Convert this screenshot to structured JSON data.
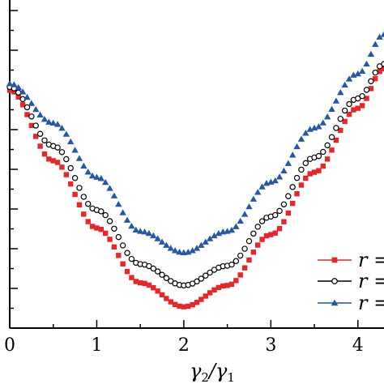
{
  "chart_data": {
    "type": "scatter",
    "xlabel": {
      "base1": "γ",
      "sub1": "2",
      "slash": "/",
      "base2": "γ",
      "sub2": "1"
    },
    "x_tick_labels": [
      "0",
      "1",
      "2",
      "3",
      "4"
    ],
    "xlim": [
      0,
      4.3
    ],
    "ylim": [
      0,
      1
    ],
    "grid": false,
    "legend_position": "right",
    "series": [
      {
        "legend_label": "r =",
        "color": "#e8262a",
        "marker": "square",
        "x": [
          0.0,
          0.5,
          1.0,
          1.5,
          2.0,
          2.5,
          3.0,
          3.5,
          4.0,
          4.3
        ],
        "y": [
          0.725,
          0.51,
          0.305,
          0.138,
          0.065,
          0.13,
          0.285,
          0.475,
          0.67,
          0.79
        ]
      },
      {
        "legend_label": "r =",
        "color": "#000000",
        "marker": "circle-open",
        "x": [
          0.0,
          0.5,
          1.0,
          1.5,
          2.0,
          2.5,
          3.0,
          3.5,
          4.0,
          4.3
        ],
        "y": [
          0.735,
          0.555,
          0.36,
          0.195,
          0.13,
          0.19,
          0.34,
          0.52,
          0.7,
          0.805
        ]
      },
      {
        "legend_label": "r =",
        "color": "#2457a6",
        "marker": "triangle",
        "x": [
          0.0,
          0.5,
          1.0,
          1.5,
          2.0,
          2.5,
          3.0,
          3.5,
          4.0,
          4.3
        ],
        "y": [
          0.745,
          0.625,
          0.46,
          0.295,
          0.23,
          0.295,
          0.445,
          0.61,
          0.775,
          0.895
        ]
      }
    ]
  }
}
